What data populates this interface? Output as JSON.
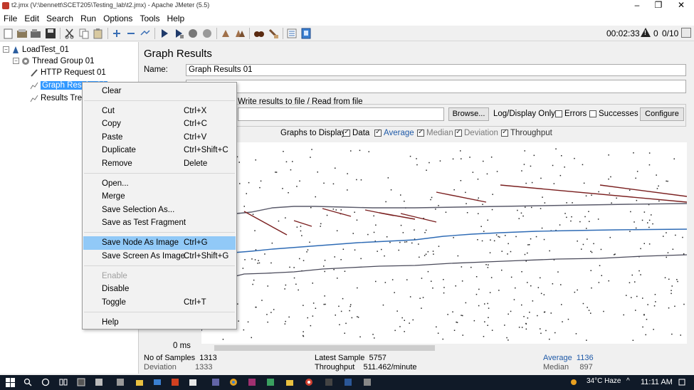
{
  "window": {
    "title": "t2.jmx (V:\\bennett\\SCET205\\Testing_lab\\t2.jmx) - Apache JMeter (5.5)",
    "min": "–",
    "max": "❐",
    "close": "✕"
  },
  "menu": [
    "File",
    "Edit",
    "Search",
    "Run",
    "Options",
    "Tools",
    "Help"
  ],
  "toolbar": {
    "elapsed": "00:02:33",
    "error_count": "0",
    "threads": "0/10"
  },
  "tree": {
    "root": "LoadTest_01",
    "thread_group": "Thread Group 01",
    "http_request": "HTTP Request 01",
    "graph_results": "Graph Results 01",
    "results_tree": "Results Tree"
  },
  "panel": {
    "title": "Graph Results",
    "name_label": "Name:",
    "name_value": "Graph Results 01",
    "file_legend": "Write results to file / Read from file",
    "browse": "Browse...",
    "log_display": "Log/Display Only:",
    "errors": "Errors",
    "successes": "Successes",
    "configure": "Configure",
    "graphs_to_display": "Graphs to Display",
    "graphs": [
      {
        "label": "Data",
        "color": "#000000"
      },
      {
        "label": "Average",
        "color": "#1f5aa8"
      },
      {
        "label": "Median",
        "color": "#7a1f1f"
      },
      {
        "label": "Deviation",
        "color": "#c0392b"
      },
      {
        "label": "Throughput",
        "color": "#1a7a1a"
      }
    ],
    "zero_ms": "0 ms"
  },
  "stats": {
    "samples_label": "No of Samples",
    "samples": "1313",
    "deviation_label": "Deviation",
    "deviation": "1333",
    "latest_label": "Latest Sample",
    "latest": "5757",
    "throughput_label": "Throughput",
    "throughput": "511.462/minute",
    "average_label": "Average",
    "average": "1136",
    "median_label": "Median",
    "median": "897"
  },
  "context_menu": [
    {
      "label": "Clear",
      "key": ""
    },
    {
      "label": "Cut",
      "key": "Ctrl+X"
    },
    {
      "label": "Copy",
      "key": "Ctrl+C"
    },
    {
      "label": "Paste",
      "key": "Ctrl+V"
    },
    {
      "label": "Duplicate",
      "key": "Ctrl+Shift+C"
    },
    {
      "label": "Remove",
      "key": "Delete"
    },
    {
      "label": "Open...",
      "key": ""
    },
    {
      "label": "Merge",
      "key": ""
    },
    {
      "label": "Save Selection As...",
      "key": ""
    },
    {
      "label": "Save as Test Fragment",
      "key": ""
    },
    {
      "label": "Save Node As Image",
      "key": "Ctrl+G"
    },
    {
      "label": "Save Screen As Image",
      "key": "Ctrl+Shift+G"
    },
    {
      "label": "Enable",
      "key": ""
    },
    {
      "label": "Disable",
      "key": ""
    },
    {
      "label": "Toggle",
      "key": "Ctrl+T"
    },
    {
      "label": "Help",
      "key": ""
    }
  ],
  "taskbar": {
    "weather": "34°C  Haze",
    "time": "11:11 AM"
  }
}
